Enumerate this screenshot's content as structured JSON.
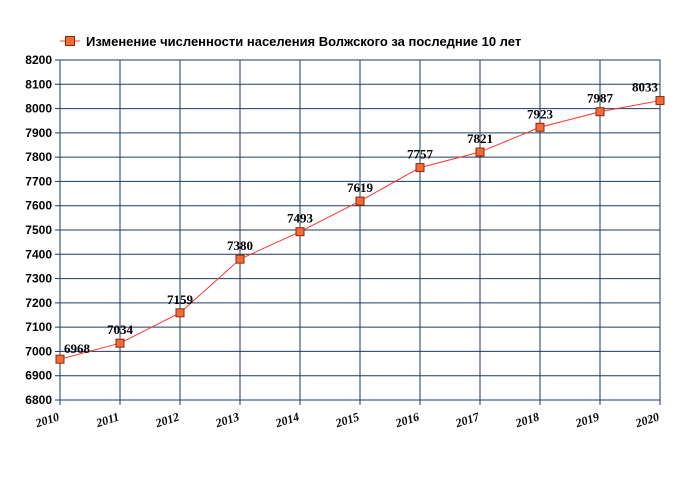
{
  "chart_data": {
    "type": "line",
    "legend": {
      "label": "Изменение численности населения Волжского за последние 10 лет",
      "placement": "top-left"
    },
    "x": [
      "2010",
      "2011",
      "2012",
      "2013",
      "2014",
      "2015",
      "2016",
      "2017",
      "2018",
      "2019",
      "2020"
    ],
    "series": [
      {
        "name": "Изменение численности населения Волжского за последние 10 лет",
        "values": [
          6968,
          7034,
          7159,
          7380,
          7493,
          7619,
          7757,
          7821,
          7923,
          7987,
          8033
        ],
        "labels": [
          "6968",
          "7034",
          "7159",
          "7380",
          "7493",
          "7619",
          "7757",
          "7821",
          "7923",
          "7987",
          "8033"
        ]
      }
    ],
    "ylim": [
      6800,
      8200
    ],
    "yticks": [
      "6800",
      "6900",
      "7000",
      "7100",
      "7200",
      "7300",
      "7400",
      "7500",
      "7600",
      "7700",
      "7800",
      "7900",
      "8000",
      "8100",
      "8200"
    ],
    "grid": true,
    "colors": {
      "line": "#ff3333",
      "marker_fill": "#f26b3a",
      "marker_stroke": "#8b2a00",
      "grid": "#1f3a5f"
    }
  }
}
